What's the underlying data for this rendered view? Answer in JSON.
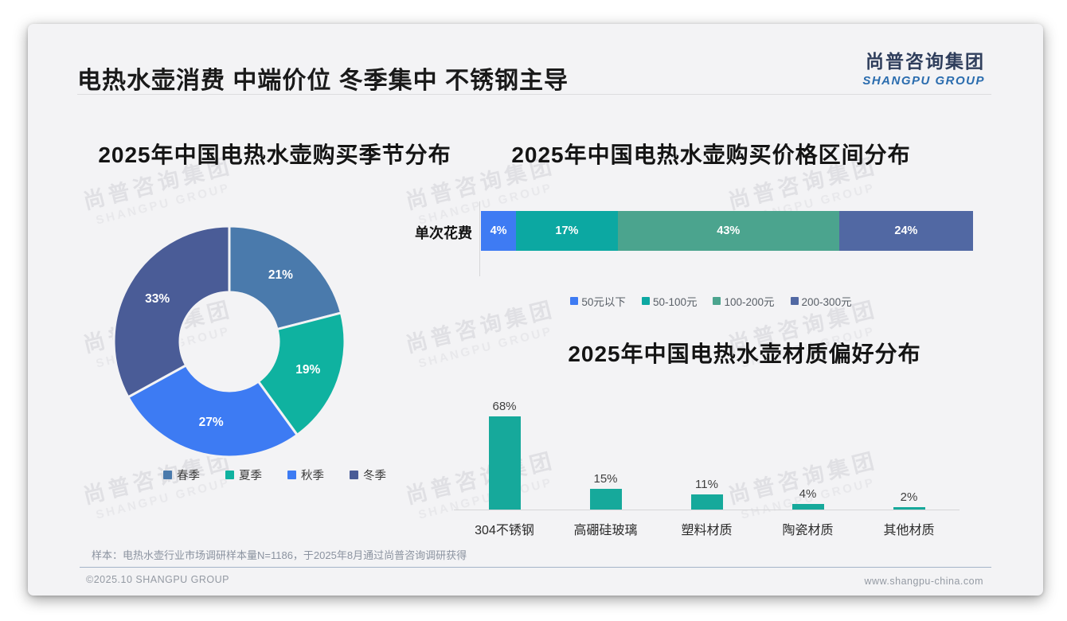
{
  "page": {
    "title": "电热水壶消费 中端价位 冬季集中 不锈钢主导",
    "logo": {
      "cn": "尚普咨询集团",
      "en": "SHANGPU GROUP"
    },
    "watermark": {
      "cn": "尚普咨询集团",
      "en": "SHANGPU GROUP"
    },
    "footer": {
      "sample_note": "样本：电热水壶行业市场调研样本量N=1186，于2025年8月通过尚普咨询调研获得",
      "copyright": "©2025.10 SHANGPU GROUP",
      "website": "www.shangpu-china.com"
    },
    "colors": {
      "card_background": "#f3f3f5",
      "logo_cn": "#2f3e5c",
      "logo_en": "#2a6cae"
    }
  },
  "chart_data": [
    {
      "id": "season_donut",
      "type": "pie",
      "variant": "donut",
      "title": "2025年中国电热水壶购买季节分布",
      "categories": [
        "春季",
        "夏季",
        "秋季",
        "冬季"
      ],
      "values": [
        21,
        19,
        27,
        33
      ],
      "unit": "%",
      "colors": [
        "#4A7AAC",
        "#0FB2A0",
        "#3D7BF3",
        "#4A5C97"
      ],
      "legend_position": "bottom",
      "start_angle_deg": 0,
      "direction": "clockwise"
    },
    {
      "id": "price_stacked_bar",
      "type": "bar",
      "variant": "stacked-horizontal",
      "title": "2025年中国电热水壶购买价格区间分布",
      "row_label": "单次花费",
      "categories": [
        "50元以下",
        "50-100元",
        "100-200元",
        "200-300元"
      ],
      "values": [
        4,
        17,
        43,
        24
      ],
      "unit": "%",
      "colors": [
        "#3E7BF3",
        "#0CA8A2",
        "#4BA48E",
        "#5168A3"
      ],
      "legend_position": "bottom",
      "segments_normalized_to_full_width": true
    },
    {
      "id": "material_bar",
      "type": "bar",
      "title": "2025年中国电热水壶材质偏好分布",
      "categories": [
        "304不锈钢",
        "高硼硅玻璃",
        "塑料材质",
        "陶瓷材质",
        "其他材质"
      ],
      "values": [
        68,
        15,
        11,
        4,
        2
      ],
      "unit": "%",
      "color": "#16A99B",
      "ylim": [
        0,
        100
      ],
      "grid": false,
      "value_labels": "above-bars"
    }
  ]
}
